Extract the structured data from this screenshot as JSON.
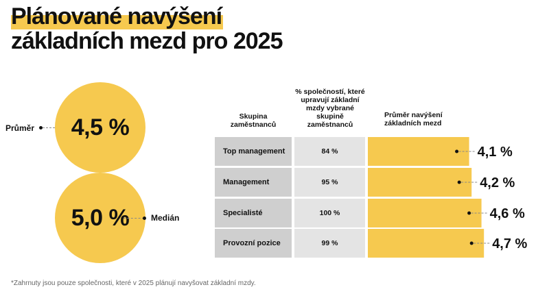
{
  "title": {
    "line1": "Plánované navýšení",
    "line2": "základních mezd pro 2025"
  },
  "stats": {
    "mean": {
      "label": "Průměr",
      "value": "4,5 %"
    },
    "median": {
      "label": "Medián",
      "value": "5,0 %"
    }
  },
  "colors": {
    "accent": "#f6c94f",
    "category_cell": "#cfcfcf",
    "percent_cell": "#e4e4e4"
  },
  "chart_data": {
    "type": "bar",
    "orientation": "horizontal",
    "column_headers": {
      "group": "Skupina zaměstnanců",
      "share": "% společností, které upravují základní mzdy vybrané skupině zaměstnanců",
      "increase": "Průměr navýšení základních mezd"
    },
    "categories": [
      "Top management",
      "Management",
      "Specialisté",
      "Provozní pozice"
    ],
    "share_labels": [
      "84 %",
      "95 %",
      "100 %",
      "99 %"
    ],
    "values": [
      4.1,
      4.2,
      4.6,
      4.7
    ],
    "value_labels": [
      "4,1 %",
      "4,2 %",
      "4,6 %",
      "4,7 %"
    ]
  },
  "footnote": "*Zahrnuty jsou pouze společnosti, které v 2025 plánují navyšovat základní mzdy."
}
